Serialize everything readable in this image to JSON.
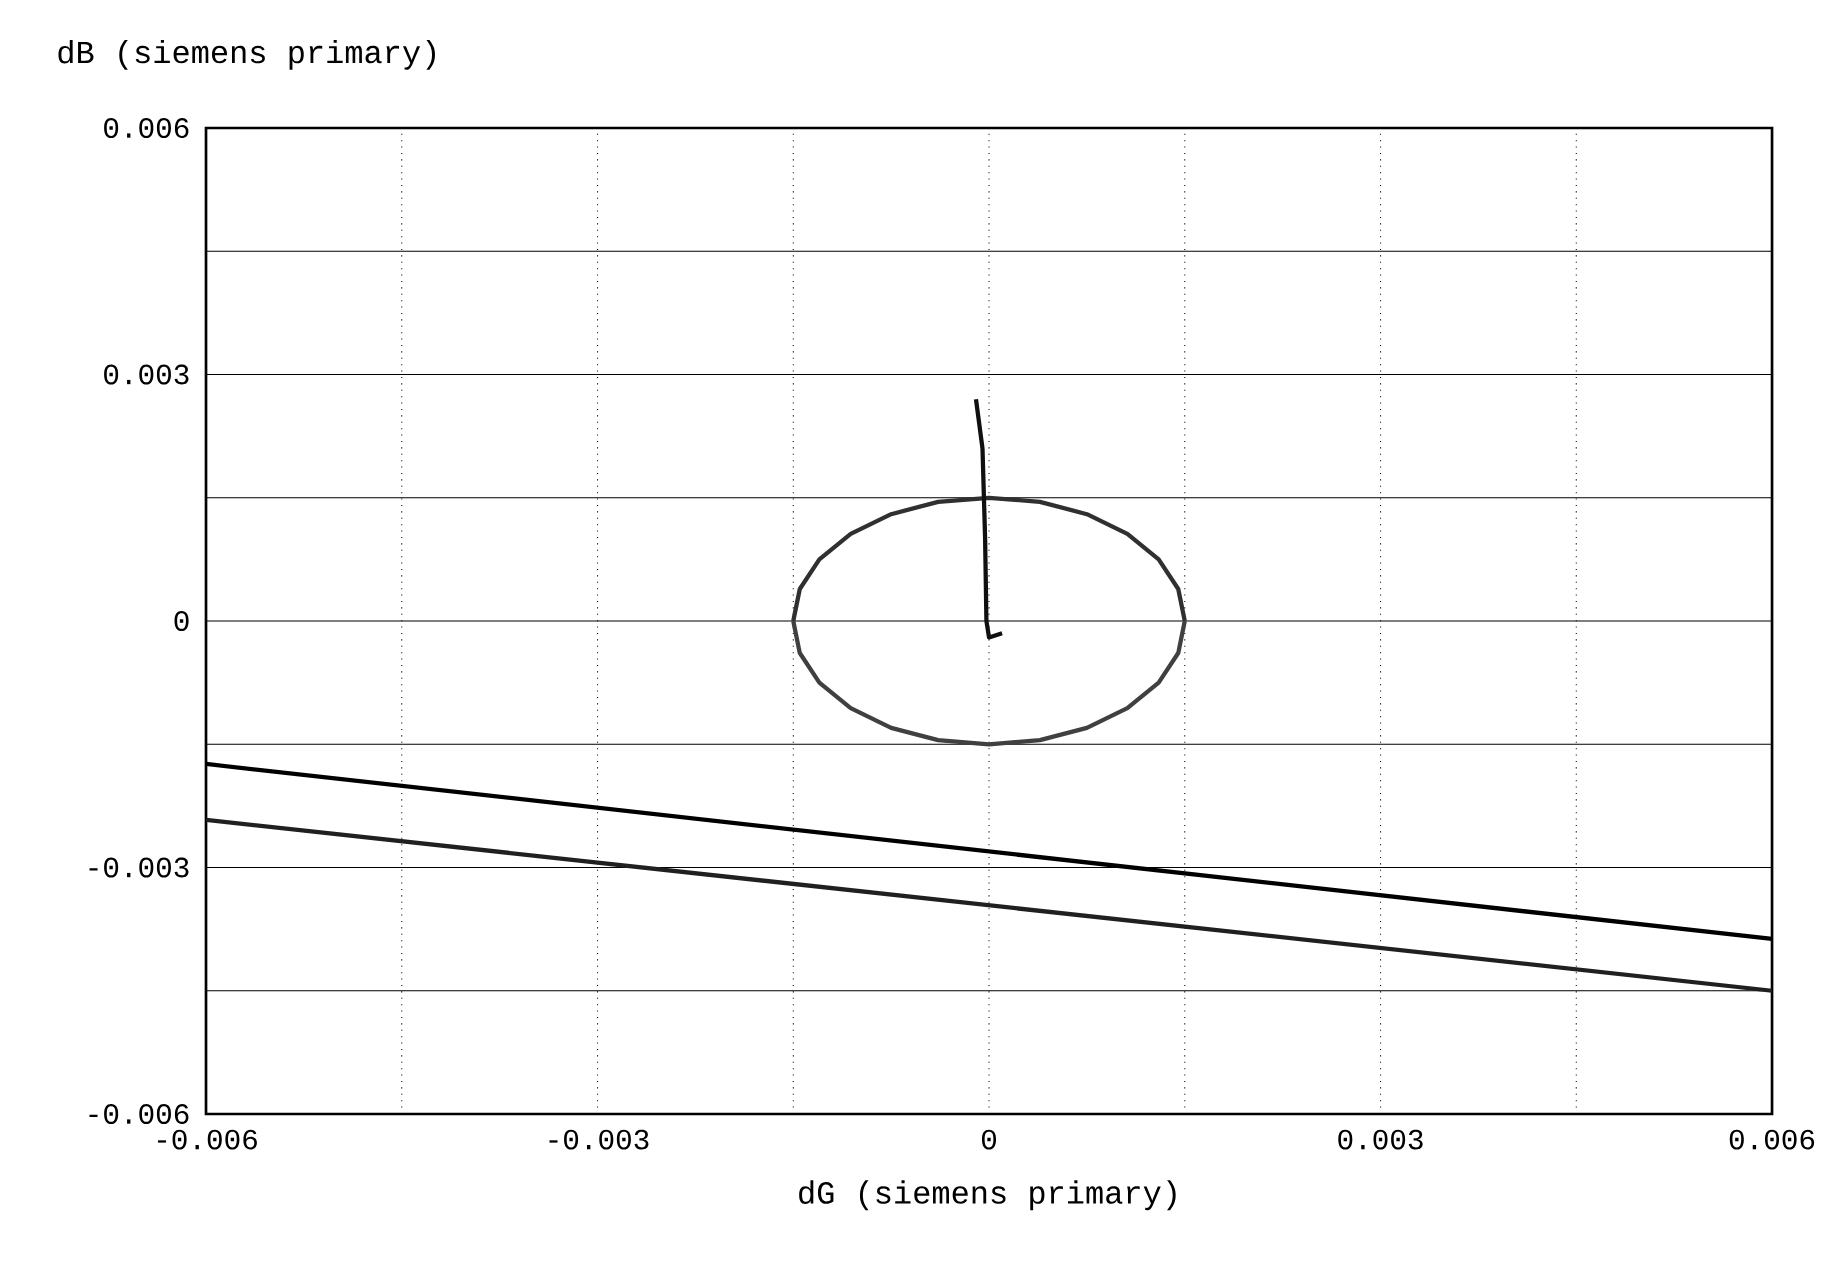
{
  "chart_data": {
    "type": "line",
    "xlabel": "dG (siemens primary)",
    "ylabel": "dB (siemens primary)",
    "xlim": [
      -0.006,
      0.006
    ],
    "ylim": [
      -0.006,
      0.006
    ],
    "xticks": [
      {
        "value": -0.006,
        "label": "-0.006"
      },
      {
        "value": -0.0045,
        "label": null
      },
      {
        "value": -0.003,
        "label": "-0.003"
      },
      {
        "value": -0.0015,
        "label": null
      },
      {
        "value": 0,
        "label": "0"
      },
      {
        "value": 0.0015,
        "label": null
      },
      {
        "value": 0.003,
        "label": "0.003"
      },
      {
        "value": 0.0045,
        "label": null
      },
      {
        "value": 0.006,
        "label": "0.006"
      }
    ],
    "yticks": [
      {
        "value": -0.006,
        "label": "-0.006"
      },
      {
        "value": -0.0045,
        "label": null
      },
      {
        "value": -0.003,
        "label": "-0.003"
      },
      {
        "value": -0.0015,
        "label": null
      },
      {
        "value": 0,
        "label": "0"
      },
      {
        "value": 0.0015,
        "label": null
      },
      {
        "value": 0.003,
        "label": "0.003"
      },
      {
        "value": 0.0045,
        "label": null
      },
      {
        "value": 0.006,
        "label": "0.006"
      }
    ],
    "grid": true,
    "line_style": "solid",
    "series": [
      {
        "color": "#303030",
        "x": [
          -0.0015,
          -0.00145,
          -0.0013,
          -0.00106,
          -0.00075,
          -0.00039,
          0,
          0.00039,
          0.00075,
          0.00106,
          0.0013,
          0.00145,
          0.0015
        ],
        "values": [
          0,
          0.00039,
          0.00075,
          0.00106,
          0.0013,
          0.00145,
          0.0015,
          0.00145,
          0.0013,
          0.00106,
          0.00075,
          0.00039,
          0
        ]
      },
      {
        "color": "#404040",
        "x": [
          -0.0015,
          -0.00145,
          -0.0013,
          -0.00106,
          -0.00075,
          -0.00039,
          0,
          0.00039,
          0.00075,
          0.00106,
          0.0013,
          0.00145,
          0.0015
        ],
        "values": [
          0,
          -0.00039,
          -0.00075,
          -0.00106,
          -0.0013,
          -0.00145,
          -0.0015,
          -0.00145,
          -0.0013,
          -0.00106,
          -0.00075,
          -0.00039,
          0
        ]
      },
      {
        "color": "#101010",
        "x": [
          -0.0001,
          -5e-05,
          -3e-05,
          -2e-05,
          0,
          0.0001
        ],
        "values": [
          0.0027,
          0.0021,
          0.001,
          0,
          -0.0002,
          -0.00015
        ]
      },
      {
        "color": "#000000",
        "x": [
          -0.006,
          0.006
        ],
        "values": [
          -0.00174,
          -0.00387
        ]
      },
      {
        "color": "#202020",
        "x": [
          -0.006,
          0.006
        ],
        "values": [
          -0.00242,
          -0.0045
        ]
      }
    ]
  }
}
